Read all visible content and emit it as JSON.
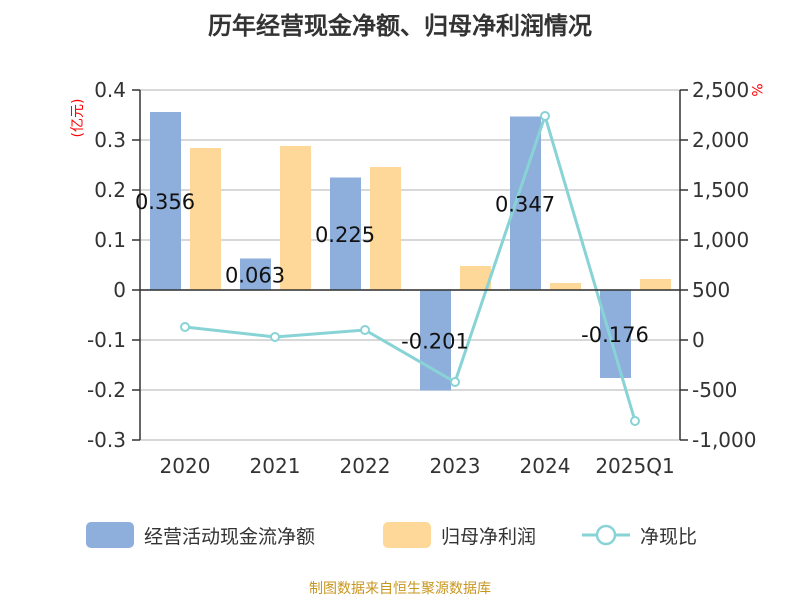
{
  "chart_data": {
    "type": "bar",
    "title": "历年经营现金净额、归母净利润情况",
    "ylabel": "(亿元)",
    "y2label": "%",
    "categories": [
      "2020",
      "2021",
      "2022",
      "2023",
      "2024",
      "2025Q1"
    ],
    "ylim": [
      -0.3,
      0.4
    ],
    "y2lim": [
      -1000,
      2500
    ],
    "yticks": [
      "0.4",
      "0.3",
      "0.2",
      "0.1",
      "0",
      "-0.1",
      "-0.2",
      "-0.3"
    ],
    "y2ticks": [
      "2,500",
      "2,000",
      "1,500",
      "1,000",
      "500",
      "0",
      "-500",
      "-1,000"
    ],
    "series": [
      {
        "name": "经营活动现金流净额",
        "type": "bar",
        "color": "#8eaedb",
        "values": [
          0.356,
          0.063,
          0.225,
          -0.201,
          0.347,
          -0.176
        ],
        "labels": [
          "0.356",
          "0.063",
          "0.225",
          "-0.201",
          "0.347",
          "-0.176"
        ]
      },
      {
        "name": "归母净利润",
        "type": "bar",
        "color": "#fdd898",
        "values": [
          0.284,
          0.288,
          0.246,
          0.048,
          0.014,
          0.022
        ]
      },
      {
        "name": "净现比",
        "type": "line",
        "axis": "right",
        "color": "#88d3d6",
        "values": [
          130,
          30,
          100,
          -420,
          2240,
          -810
        ]
      }
    ],
    "legend": "bottom",
    "grid": true
  },
  "footer": "制图数据来自恒生聚源数据库"
}
